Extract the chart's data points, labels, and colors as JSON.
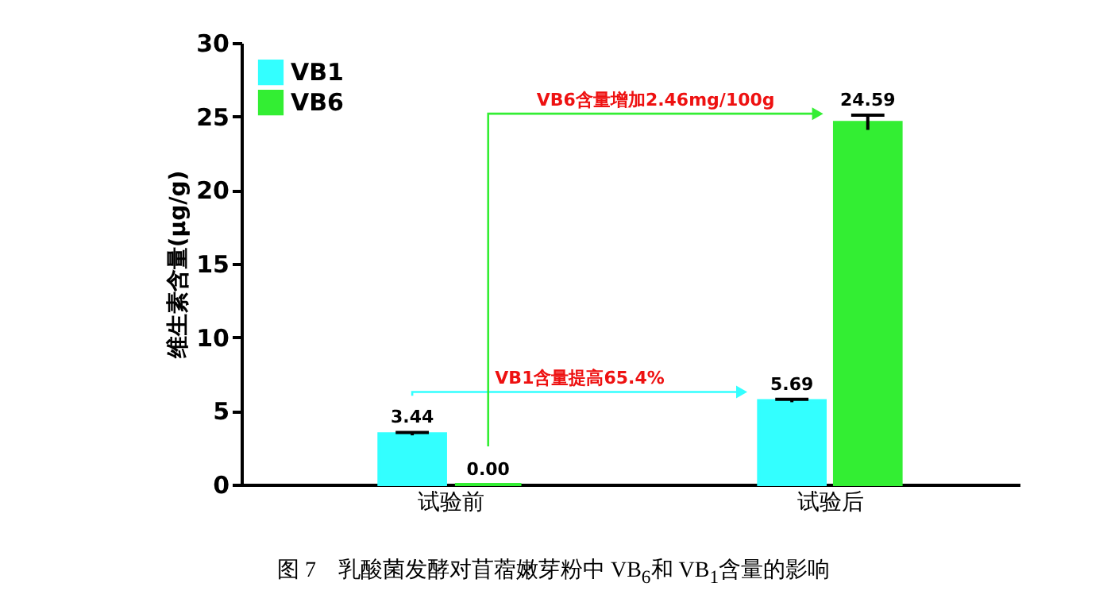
{
  "chart_data": {
    "type": "bar",
    "title": "图 7　乳酸菌发酵对苜蓿嫩芽粉中 VB$_{6}$和 VB$_{1}$含量的影响",
    "ylabel": "维生素含量(μg/g)",
    "categories": [
      "试验前",
      "试验后"
    ],
    "series": [
      {
        "name": "VB1",
        "color": "#33ffff",
        "values": [
          3.44,
          5.69
        ],
        "errors": [
          0.1,
          0.1
        ],
        "value_labels": [
          "3.44",
          "5.69"
        ]
      },
      {
        "name": "VB6",
        "color": "#33ee33",
        "values": [
          0.0,
          24.59
        ],
        "errors": [
          null,
          0.5
        ],
        "value_labels": [
          "0.00",
          "24.59"
        ]
      }
    ],
    "ylim": [
      0,
      30
    ],
    "yticks": [
      0,
      5,
      10,
      15,
      20,
      25,
      30
    ],
    "legend": "top left",
    "grid": false,
    "annotations": [
      "VB1含量提高65.4%",
      "VB6含量增加2.46mg/100g"
    ]
  }
}
